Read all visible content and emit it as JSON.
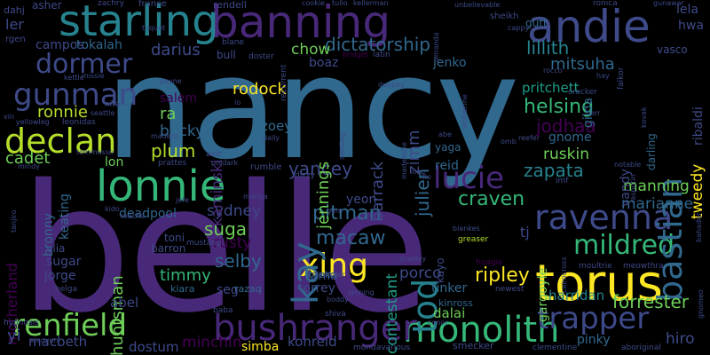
{
  "colors": {
    "background": "#000000",
    "palette": [
      "#440154",
      "#482878",
      "#3e4a89",
      "#31688e",
      "#26828e",
      "#1f9e89",
      "#35b779",
      "#6ece58",
      "#b5de2b",
      "#fde725"
    ]
  },
  "words": {
    "nancy": "nancy",
    "belle": "belle",
    "torus": "torus",
    "banning": "banning",
    "andie": "andie",
    "starling": "starling",
    "lonnie": "lonnie",
    "monolith": "monolith",
    "bushranger": "bushranger",
    "renfield": "renfield",
    "declan": "declan",
    "ravenna": "ravenna",
    "trapper": "trapper",
    "mildred": "mildred",
    "gunman": "gunman",
    "dormer": "dormer",
    "bastian": "bastian",
    "xing": "xing",
    "kay": "kay",
    "lucie": "lucie",
    "tod": "tod",
    "dictatorship": "dictatorship",
    "lillith": "lillith",
    "mitsuha": "mitsuha",
    "forrester": "forrester",
    "helsing": "helsing",
    "pritchett": "pritchett",
    "jodhaa": "jodhaa",
    "zapata": "zapata",
    "craven": "craven",
    "pitman": "pitman",
    "macaw": "macaw",
    "huntsman": "huntsman",
    "selby": "selby",
    "timmy": "timmy",
    "suga": "suga",
    "rusty": "rusty",
    "sydney": "sydney",
    "yancey": "yancey",
    "jennings": "jennings",
    "julien": "julien",
    "barrack": "barrack",
    "zimm": "zimm",
    "contestant": "contestant",
    "ripley": "ripley",
    "porco": "porco",
    "manning": "manning",
    "marianne": "marianne",
    "gargoyle": "gargoyle",
    "vandy": "vandy",
    "tweedy": "tweedy",
    "ruskin": "ruskin",
    "gnome": "gnome",
    "harridan": "harridan",
    "pinky": "pinky",
    "hiro": "hiro",
    "konreid": "konreid",
    "dostum": "dostum",
    "minchin": "minchin",
    "simba": "simba",
    "macbeth": "macbeth",
    "abel": "abel",
    "dalai": "dalai",
    "tinker": "tinker",
    "torrey": "torrey",
    "lama": "lama",
    "plum": "plum",
    "lon": "lon",
    "cadet": "cadet",
    "rodock": "rodock",
    "ronnie": "ronnie",
    "ra": "ra",
    "bucky": "bucky",
    "kaminski": "kaminski",
    "zoey": "zoey",
    "salem": "salem",
    "darius": "darius",
    "chow": "chow",
    "boaz": "boaz",
    "jenko": "jenko",
    "tokalah": "tokalah",
    "campos": "campos",
    "ler": "ler",
    "lela": "lela",
    "hwa": "hwa",
    "gutt": "gutt",
    "reid": "reid",
    "yaga": "yaga",
    "tj": "tj",
    "kayo": "kayo",
    "kinross": "kinross",
    "yeon": "yeon",
    "keating": "keating",
    "bronny": "bronny",
    "motherland": "motherland",
    "sugar": "sugar",
    "jorge": "jorge",
    "elia": "elia",
    "toni": "toni",
    "barron": "barron",
    "deadpool": "deadpool",
    "yi": "yi",
    "seg": "seg",
    "kiara": "kiara",
    "taeko": "taeko",
    "razaq": "razaq",
    "gilda": "gilda",
    "darling": "darling",
    "ribaldi": "ribaldi",
    "asher": "asher",
    "dahj": "dahj",
    "zachry": "zachry",
    "france": "france",
    "rendell": "rendell",
    "rgen": "rgen",
    "toquet": "toquet",
    "blane": "blane",
    "bull": "bull",
    "doster": "doster",
    "recurrent": "recurrent",
    "latin": "latin",
    "bridget": "bridget",
    "cookie": "cookie",
    "tulio": "tulio",
    "kellerman": "kellerman",
    "amanda": "amanda",
    "unbelievable": "unbelievable",
    "sheikh": "sheikh",
    "ronica": "ronica",
    "gunawar": "gunawar",
    "cappy": "cappy",
    "vasco": "vasco",
    "falkor": "falkor",
    "rocco": "rocco",
    "hay": "hay",
    "crocker": "crocker",
    "herr": "herr",
    "reefer": "reefer",
    "kovak": "kovak",
    "rasputin": "rasputin",
    "notable": "notable",
    "imf": "imf",
    "bahadur": "bahadur",
    "fio": "fio",
    "loop": "loop",
    "gem": "gem",
    "dizzy": "dizzy",
    "rumble": "rumble",
    "manga": "manga",
    "poldark": "poldark",
    "aziz": "aziz",
    "prattes": "prattes",
    "mustang": "mustang",
    "jefe": "jefe",
    "macha": "macha",
    "kido": "kido",
    "greaser": "greaser",
    "blankes": "blankes",
    "hoagie": "hoagie",
    "cairncross": "cairncross",
    "moultrie": "moultrie",
    "meowthra": "meowthra",
    "gnomeo": "gnomeo",
    "bradley": "bradley",
    "faulkner": "faulkner",
    "janning": "janning",
    "boddy": "boddy",
    "conor": "conor",
    "newest": "newest",
    "shiva": "shiva",
    "helga": "helga",
    "hypnosis": "hypnosis",
    "xiaoyun": "xiaoyun",
    "baba": "baba",
    "mondavarious": "mondavarious",
    "smecker": "smecker",
    "clementine": "clementine",
    "aboriginal": "aboriginal",
    "payne": "payne",
    "io": "io",
    "madero": "madero",
    "dally": "dally",
    "nita": "nita",
    "seattle": "seattle",
    "leonidas": "leonidas",
    "yellowleg": "yellowleg",
    "vin": "vin",
    "missie": "missie",
    "kettle": "kettle",
    "tommasso": "tommasso",
    "mindy": "mindy",
    "tanjiro": "tanjiro",
    "dunphy": "dunphy",
    "abe": "abe",
    "madeleine": "madeleine",
    "omb": "omb",
    "sterling": "sterling",
    "wolverine": "wolverine"
  }
}
